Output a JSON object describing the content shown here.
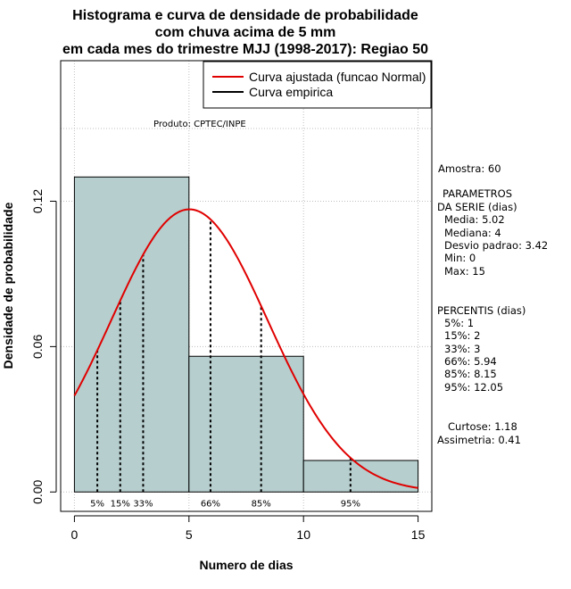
{
  "chart_data": {
    "type": "bar",
    "title_lines": [
      "Histograma e curva de densidade de probabilidade",
      "com chuva acima de 5 mm",
      "em cada mes do trimestre MJJ (1998-2017): Regiao 50"
    ],
    "xlabel": "Numero de dias",
    "ylabel": "Densidade de probabilidade",
    "xlim": [
      -0.6,
      15.6
    ],
    "ylim": [
      -0.008,
      0.178
    ],
    "x_ticks": [
      0,
      5,
      10,
      15
    ],
    "y_ticks": [
      0.0,
      0.06,
      0.12
    ],
    "y_tick_labels": [
      "0.00",
      "0.06",
      "0.12"
    ],
    "x_grid": [
      0,
      5,
      10,
      15
    ],
    "y_grid": [
      0.0,
      0.06,
      0.12
    ],
    "extra_grid_y": 0.15,
    "grid": true,
    "histogram": {
      "bins": [
        [
          0,
          5
        ],
        [
          5,
          10
        ],
        [
          10,
          15
        ]
      ],
      "values": [
        0.13,
        0.056,
        0.013
      ],
      "color": "#b6cece"
    },
    "normal_curve": {
      "name": "Curva ajustada (funcao Normal)",
      "mean": 5.02,
      "sd": 3.42,
      "x_range": [
        0,
        15
      ],
      "color": "#e00000"
    },
    "empirical_curve": {
      "name": "Curva empirica",
      "color": "#000000"
    },
    "percentile_lines": [
      {
        "label": "5%",
        "x": 1
      },
      {
        "label": "15%",
        "x": 2
      },
      {
        "label": "33%",
        "x": 3
      },
      {
        "label": "66%",
        "x": 5.94
      },
      {
        "label": "85%",
        "x": 8.15
      },
      {
        "label": "95%",
        "x": 12.05
      }
    ],
    "legend_position": "top-right",
    "source_label": "Produto: CPTEC/INPE"
  },
  "stats_panel": {
    "amostra": "Amostra: 60",
    "parametros_title1": "PARAMETROS",
    "parametros_title2": "DA SERIE (dias)",
    "media": "Media: 5.02",
    "mediana": "Mediana: 4",
    "desvio": "Desvio padrao: 3.42",
    "min": "Min: 0",
    "max": "Max: 15",
    "percentis_title": "PERCENTIS (dias)",
    "p5": "5%: 1",
    "p15": "15%: 2",
    "p33": "33%: 3",
    "p66": "66%: 5.94",
    "p85": "85%: 8.15",
    "p95": "95%: 12.05",
    "curtose": "Curtose: 1.18",
    "assimetria": "Assimetria: 0.41"
  }
}
